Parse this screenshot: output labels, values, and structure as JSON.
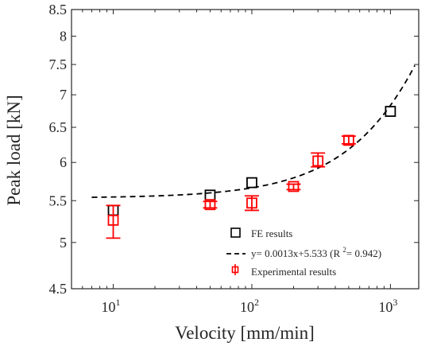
{
  "chart_data": {
    "type": "scatter",
    "xscale": "log",
    "yscale": "log",
    "xlabel": "Velocity [mm/min]",
    "ylabel": "Peak load [kN]",
    "xlim": [
      5,
      1600
    ],
    "ylim": [
      4.5,
      8.5
    ],
    "xticks": [
      {
        "value": 10,
        "base": "10",
        "exp": "1"
      },
      {
        "value": 100,
        "base": "10",
        "exp": "2"
      },
      {
        "value": 1000,
        "base": "10",
        "exp": "3"
      }
    ],
    "yticks": [
      {
        "value": 4.5,
        "label": "4.5"
      },
      {
        "value": 5,
        "label": "5"
      },
      {
        "value": 5.5,
        "label": "5.5"
      },
      {
        "value": 6,
        "label": "6"
      },
      {
        "value": 6.5,
        "label": "6.5"
      },
      {
        "value": 7,
        "label": "7"
      },
      {
        "value": 7.5,
        "label": "7.5"
      },
      {
        "value": 8,
        "label": "8"
      },
      {
        "value": 8.5,
        "label": "8.5"
      }
    ],
    "grid": false,
    "box": true,
    "legend_position": "bottom-right",
    "series": [
      {
        "name": "FE results",
        "kind": "markers",
        "marker": "square",
        "color": "#000000",
        "points": [
          {
            "x": 10,
            "y": 5.38
          },
          {
            "x": 50,
            "y": 5.57
          },
          {
            "x": 100,
            "y": 5.73
          },
          {
            "x": 1000,
            "y": 6.74
          }
        ]
      },
      {
        "name": "Experimental results",
        "kind": "errorbar",
        "marker": "square",
        "color": "#ff0000",
        "points": [
          {
            "x": 10,
            "y": 5.26,
            "ylow": 5.05,
            "yhigh": 5.44
          },
          {
            "x": 50,
            "y": 5.45,
            "ylow": 5.41,
            "yhigh": 5.49
          },
          {
            "x": 100,
            "y": 5.47,
            "ylow": 5.38,
            "yhigh": 5.56
          },
          {
            "x": 200,
            "y": 5.68,
            "ylow": 5.64,
            "yhigh": 5.71
          },
          {
            "x": 300,
            "y": 6.02,
            "ylow": 5.94,
            "yhigh": 6.13
          },
          {
            "x": 500,
            "y": 6.31,
            "ylow": 6.26,
            "yhigh": 6.37
          }
        ]
      },
      {
        "name": "y= 0.0013x+5.533 (R 2= 0.942)",
        "kind": "fit",
        "style": "dashed",
        "color": "#000000",
        "slope": 0.0013,
        "intercept": 5.533,
        "x_range": [
          7,
          1500
        ]
      }
    ],
    "legend": {
      "fe_label": "FE results",
      "fit_label_main": "y= 0.0013x+5.533 (R ",
      "fit_label_sup": "2",
      "fit_label_tail": "= 0.942)",
      "exp_label": "Experimental results"
    }
  }
}
